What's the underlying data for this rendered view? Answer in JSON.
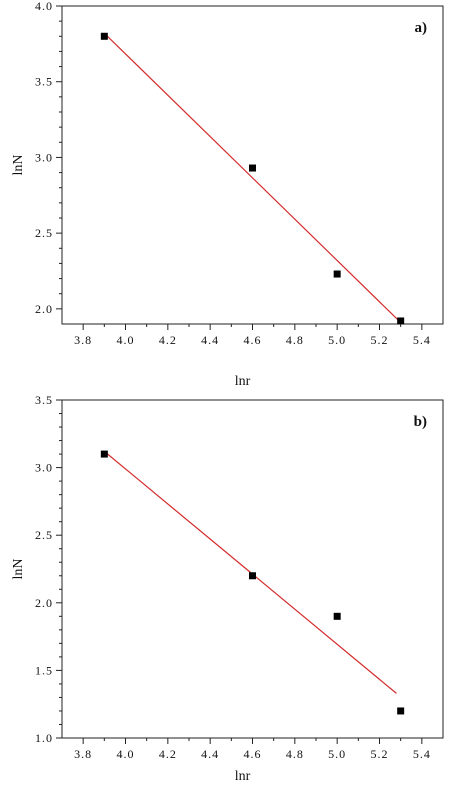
{
  "chart_data": [
    {
      "type": "scatter",
      "panel_label": "a)",
      "xlabel": "lnr",
      "ylabel": "lnN",
      "xlim": [
        3.7,
        5.5
      ],
      "ylim": [
        1.9,
        4.0
      ],
      "xticks": [
        3.8,
        4.0,
        4.2,
        4.4,
        4.6,
        4.8,
        5.0,
        5.2,
        5.4
      ],
      "xtick_labels": [
        "3.8",
        "4.0",
        "4.2",
        "4.4",
        "4.6",
        "4.8",
        "5.0",
        "5.2",
        "5.4"
      ],
      "yticks": [
        2.0,
        2.5,
        3.0,
        3.5,
        4.0
      ],
      "ytick_labels": [
        "2.0",
        "2.5",
        "3.0",
        "3.5",
        "4.0"
      ],
      "points": [
        {
          "x": 3.9,
          "y": 3.8
        },
        {
          "x": 4.6,
          "y": 2.93
        },
        {
          "x": 5.0,
          "y": 2.23
        },
        {
          "x": 5.3,
          "y": 1.92
        }
      ],
      "fit_line": {
        "x": [
          3.9,
          5.3
        ],
        "y": [
          3.82,
          1.91
        ]
      },
      "marker_color": "#000000",
      "fit_color": "#d42a2a",
      "grid": false
    },
    {
      "type": "scatter",
      "panel_label": "b)",
      "xlabel": "lnr",
      "ylabel": "lnN",
      "xlim": [
        3.7,
        5.5
      ],
      "ylim": [
        1.0,
        3.5
      ],
      "xticks": [
        3.8,
        4.0,
        4.2,
        4.4,
        4.6,
        4.8,
        5.0,
        5.2,
        5.4
      ],
      "xtick_labels": [
        "3.8",
        "4.0",
        "4.2",
        "4.4",
        "4.6",
        "4.8",
        "5.0",
        "5.2",
        "5.4"
      ],
      "yticks": [
        1.0,
        1.5,
        2.0,
        2.5,
        3.0,
        3.5
      ],
      "ytick_labels": [
        "1.0",
        "1.5",
        "2.0",
        "2.5",
        "3.0",
        "3.5"
      ],
      "points": [
        {
          "x": 3.9,
          "y": 3.1
        },
        {
          "x": 4.6,
          "y": 2.2
        },
        {
          "x": 5.0,
          "y": 1.9
        },
        {
          "x": 5.3,
          "y": 1.2
        }
      ],
      "fit_line": {
        "x": [
          3.9,
          5.28
        ],
        "y": [
          3.12,
          1.33
        ]
      },
      "marker_color": "#000000",
      "fit_color": "#d42a2a",
      "grid": false
    }
  ]
}
